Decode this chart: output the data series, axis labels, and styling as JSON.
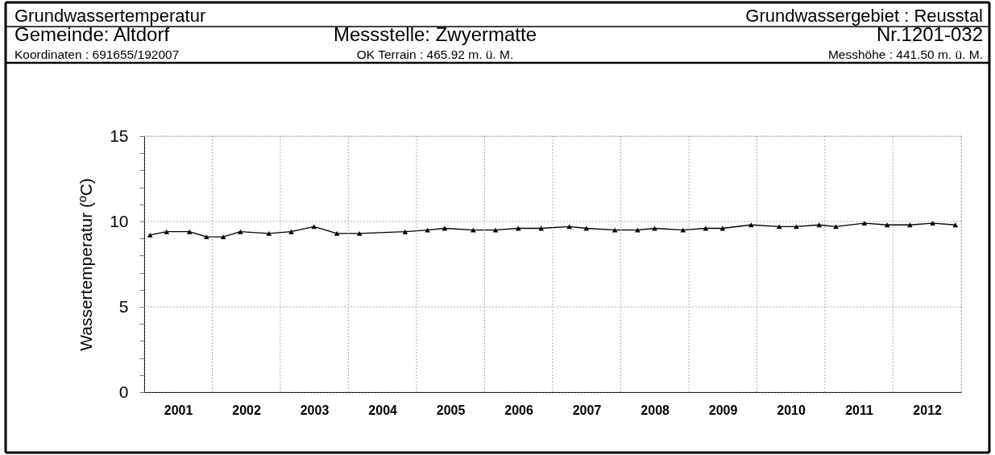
{
  "chart_data": {
    "type": "line",
    "title": "Grundwassertemperatur",
    "annotations": [
      "Grundwassergebiet : Reusstal",
      "Gemeinde: Altdorf",
      "Messstelle: Zwyermatte",
      "Nr.1201-032",
      "Koordinaten : 691655/192007",
      "OK Terrain : 465.92 m. ü. M.",
      "Messhöhe : 441.50 m. ü. M."
    ],
    "ylabel": "Wassertemperatur (ºC)",
    "x": [
      "2001-02",
      "2001-05",
      "2001-09",
      "2001-12",
      "2002-03",
      "2002-06",
      "2002-11",
      "2003-03",
      "2003-07",
      "2003-11",
      "2004-03",
      "2004-11",
      "2005-03",
      "2005-06",
      "2005-11",
      "2006-03",
      "2006-07",
      "2006-11",
      "2007-04",
      "2007-07",
      "2007-12",
      "2008-04",
      "2008-07",
      "2008-12",
      "2009-04",
      "2009-07",
      "2009-12",
      "2010-05",
      "2010-08",
      "2010-12",
      "2011-03",
      "2011-08",
      "2011-12",
      "2012-04",
      "2012-08",
      "2012-12"
    ],
    "series": [
      {
        "color": "#000000",
        "values": [
          9.2,
          9.4,
          9.4,
          9.1,
          9.1,
          9.4,
          9.3,
          9.4,
          9.7,
          9.3,
          9.3,
          9.4,
          9.5,
          9.6,
          9.5,
          9.5,
          9.6,
          9.6,
          9.7,
          9.6,
          9.5,
          9.5,
          9.6,
          9.5,
          9.6,
          9.6,
          9.8,
          9.7,
          9.7,
          9.8,
          9.7,
          9.9,
          9.8,
          9.8,
          9.9,
          9.8
        ]
      }
    ],
    "xlim": [
      "2001-01-01",
      "2013-01-01"
    ],
    "xticks": [
      {
        "value": "2001-01-01",
        "label": null
      },
      {
        "value": "2001-07-02",
        "label": "2001"
      },
      {
        "value": "2002-01-01",
        "label": null
      },
      {
        "value": "2002-07-02",
        "label": "2002"
      },
      {
        "value": "2003-01-01",
        "label": null
      },
      {
        "value": "2003-07-02",
        "label": "2003"
      },
      {
        "value": "2004-01-01",
        "label": null
      },
      {
        "value": "2004-07-02",
        "label": "2004"
      },
      {
        "value": "2005-01-01",
        "label": null
      },
      {
        "value": "2005-07-02",
        "label": "2005"
      },
      {
        "value": "2006-01-01",
        "label": null
      },
      {
        "value": "2006-07-02",
        "label": "2006"
      },
      {
        "value": "2007-01-01",
        "label": null
      },
      {
        "value": "2007-07-02",
        "label": "2007"
      },
      {
        "value": "2008-01-01",
        "label": null
      },
      {
        "value": "2008-07-02",
        "label": "2008"
      },
      {
        "value": "2009-01-01",
        "label": null
      },
      {
        "value": "2009-07-02",
        "label": "2009"
      },
      {
        "value": "2010-01-01",
        "label": null
      },
      {
        "value": "2010-07-02",
        "label": "2010"
      },
      {
        "value": "2011-01-01",
        "label": null
      },
      {
        "value": "2011-07-02",
        "label": "2011"
      },
      {
        "value": "2012-01-01",
        "label": null
      },
      {
        "value": "2012-07-02",
        "label": "2012"
      },
      {
        "value": "2013-01-01",
        "label": null
      }
    ],
    "ylim": [
      0,
      15
    ],
    "yticks": [
      0,
      {
        "value": 1,
        "label": null
      },
      {
        "value": 2,
        "label": null
      },
      {
        "value": 3,
        "label": null
      },
      {
        "value": 4,
        "label": null
      },
      5,
      {
        "value": 6,
        "label": null
      },
      {
        "value": 7,
        "label": null
      },
      {
        "value": 8,
        "label": null
      },
      {
        "value": 9,
        "label": null
      },
      10,
      {
        "value": 11,
        "label": null
      },
      {
        "value": 12,
        "label": null
      },
      {
        "value": 13,
        "label": null
      },
      {
        "value": 14,
        "label": null
      },
      15
    ],
    "grid": true,
    "marker": "triangle",
    "line_style": "solid"
  }
}
